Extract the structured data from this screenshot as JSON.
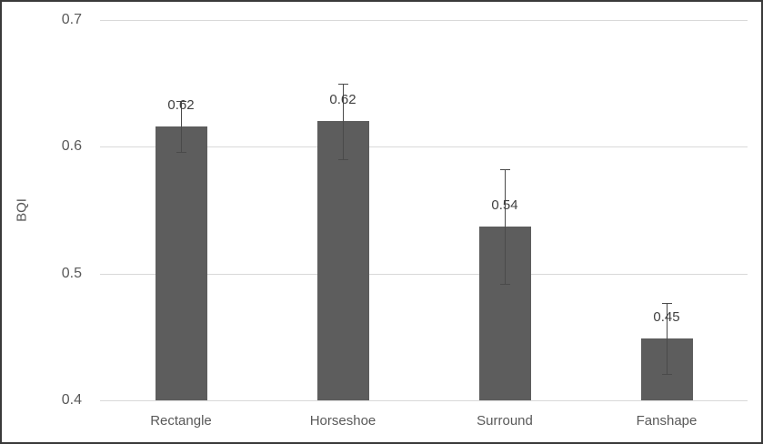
{
  "chart_data": {
    "type": "bar",
    "title": "",
    "xlabel": "",
    "ylabel": "BQI",
    "categories": [
      "Rectangle",
      "Horseshoe",
      "Surround",
      "Fanshape"
    ],
    "values": [
      0.62,
      0.62,
      0.54,
      0.45
    ],
    "value_labels": [
      "0.62",
      "0.62",
      "0.54",
      "0.45"
    ],
    "plotted_values": [
      0.616,
      0.62,
      0.537,
      0.449
    ],
    "error_bars": [
      {
        "plus": 0.02,
        "minus": 0.02
      },
      {
        "plus": 0.03,
        "minus": 0.03
      },
      {
        "plus": 0.045,
        "minus": 0.045
      },
      {
        "plus": 0.028,
        "minus": 0.028
      }
    ],
    "ylim": [
      0.4,
      0.7
    ],
    "yticks": [
      0.7,
      0.6,
      0.5,
      0.4
    ],
    "ytick_labels": [
      "0.7",
      "0.6",
      "0.5",
      "0.4"
    ],
    "grid": "horizontal",
    "legend": "none",
    "colors": {
      "bar": "#5d5d5d",
      "gridline": "#d9d9d9",
      "axis_text": "#595959",
      "value_label_text": "#404040",
      "error_bar": "#4a4a4a",
      "frame_border": "#3a3a3a",
      "background": "#ffffff"
    }
  }
}
